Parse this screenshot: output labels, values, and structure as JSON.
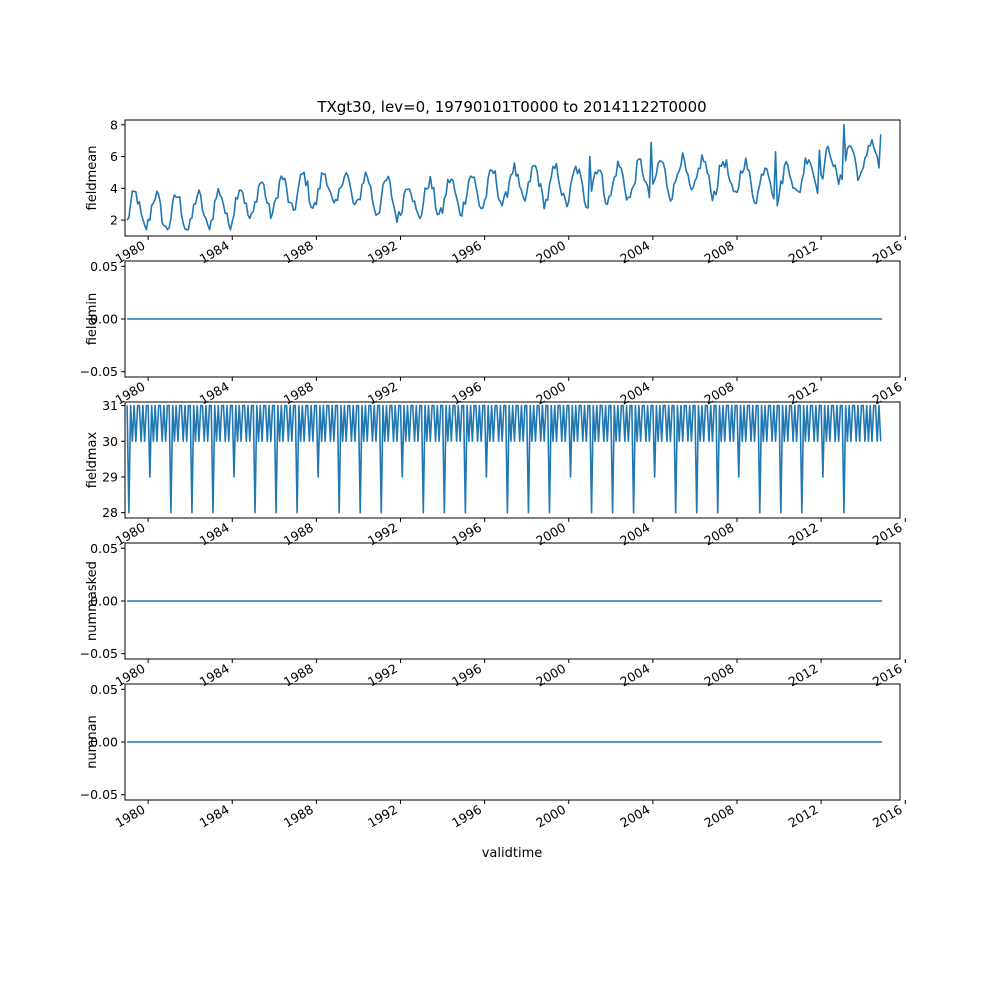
{
  "figure": {
    "title": "TXgt30, lev=0, 19790101T0000 to 20141122T0000",
    "xlabel": "validtime",
    "line_color": "#1f77b4"
  },
  "chart_data": [
    {
      "type": "line",
      "name": "fieldmean",
      "ylabel": "fieldmean",
      "xlim": [
        1978.9,
        2015.75
      ],
      "ylim": [
        1.0,
        8.3
      ],
      "xticks": [
        1980,
        1984,
        1988,
        1992,
        1996,
        2000,
        2004,
        2008,
        2012,
        2016
      ],
      "yticks": [
        2,
        4,
        6,
        8
      ],
      "ytick_labels": [
        "2",
        "4",
        "6",
        "8"
      ],
      "x_start": 1979.0,
      "x_end": 2014.9,
      "base_by_year": [
        [
          1979,
          2.6
        ],
        [
          1982,
          2.4
        ],
        [
          1984,
          2.9
        ],
        [
          1986,
          3.5
        ],
        [
          1988,
          3.9
        ],
        [
          1990,
          3.9
        ],
        [
          1992,
          3.2
        ],
        [
          1994,
          3.4
        ],
        [
          1996,
          3.9
        ],
        [
          1998,
          4.3
        ],
        [
          2000,
          4.1
        ],
        [
          2002,
          4.3
        ],
        [
          2004,
          4.6
        ],
        [
          2006,
          4.8
        ],
        [
          2008,
          4.6
        ],
        [
          2010,
          4.3
        ],
        [
          2012,
          5.2
        ],
        [
          2014,
          5.8
        ],
        [
          2015,
          6.2
        ]
      ],
      "amplitude": 1.1,
      "max_value": 8.0,
      "min_value": 1.4,
      "end_value": 7.4
    },
    {
      "type": "line",
      "name": "fieldmin",
      "ylabel": "fieldmin",
      "xlim": [
        1978.9,
        2015.75
      ],
      "ylim": [
        -0.055,
        0.055
      ],
      "xticks": [
        1980,
        1984,
        1988,
        1992,
        1996,
        2000,
        2004,
        2008,
        2012,
        2016
      ],
      "yticks": [
        0.05,
        0.0,
        -0.05
      ],
      "ytick_labels": [
        "0.05",
        "0.00",
        "−0.05"
      ],
      "x_start": 1979.0,
      "x_end": 2014.9,
      "constant": 0.0
    },
    {
      "type": "line",
      "name": "fieldmax",
      "ylabel": "fieldmax",
      "xlim": [
        1978.9,
        2015.75
      ],
      "ylim": [
        27.85,
        31.1
      ],
      "xticks": [
        1980,
        1984,
        1988,
        1992,
        1996,
        2000,
        2004,
        2008,
        2012,
        2016
      ],
      "yticks": [
        28,
        29,
        30,
        31
      ],
      "ytick_labels": [
        "28",
        "29",
        "30",
        "31"
      ],
      "x_start": 1979.0,
      "x_end": 2014.9,
      "month_lengths": [
        31,
        28,
        31,
        30,
        31,
        30,
        31,
        31,
        30,
        31,
        30,
        31
      ],
      "leap_feb": 29,
      "last_feb_drop_year": 2014
    },
    {
      "type": "line",
      "name": "nummasked",
      "ylabel": "nummasked",
      "xlim": [
        1978.9,
        2015.75
      ],
      "ylim": [
        -0.055,
        0.055
      ],
      "xticks": [
        1980,
        1984,
        1988,
        1992,
        1996,
        2000,
        2004,
        2008,
        2012,
        2016
      ],
      "yticks": [
        0.05,
        0.0,
        -0.05
      ],
      "ytick_labels": [
        "0.05",
        "0.00",
        "−0.05"
      ],
      "x_start": 1979.0,
      "x_end": 2014.9,
      "constant": 0.0
    },
    {
      "type": "line",
      "name": "numnan",
      "ylabel": "numnan",
      "xlim": [
        1978.9,
        2015.75
      ],
      "ylim": [
        -0.055,
        0.055
      ],
      "xticks": [
        1980,
        1984,
        1988,
        1992,
        1996,
        2000,
        2004,
        2008,
        2012,
        2016
      ],
      "yticks": [
        0.05,
        0.0,
        -0.05
      ],
      "ytick_labels": [
        "0.05",
        "0.00",
        "−0.05"
      ],
      "x_start": 1979.0,
      "x_end": 2014.9,
      "constant": 0.0
    }
  ]
}
